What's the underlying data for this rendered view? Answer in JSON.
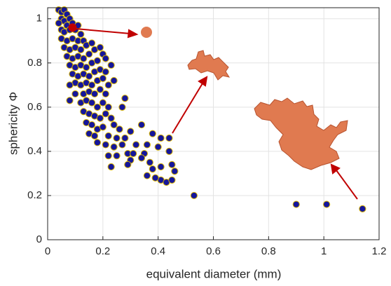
{
  "chart_data": {
    "type": "scatter",
    "x_label": "equivalent  diameter (mm)",
    "y_label": "sphericity Φ",
    "xlim": [
      0,
      1.2
    ],
    "ylim": [
      0,
      1.05
    ],
    "xticks": [
      0,
      0.2,
      0.4,
      0.6,
      0.8,
      1,
      1.2
    ],
    "yticks": [
      0,
      0.2,
      0.4,
      0.6,
      0.8,
      1
    ],
    "grid": true,
    "series": [
      {
        "color": "#15169a",
        "edgecolor": "#d8b400",
        "x": [
          0.04,
          0.05,
          0.06,
          0.07,
          0.05,
          0.06,
          0.08,
          0.04,
          0.07,
          0.09,
          0.05,
          0.06,
          0.08,
          0.1,
          0.11,
          0.12,
          0.05,
          0.07,
          0.09,
          0.11,
          0.13,
          0.06,
          0.08,
          0.1,
          0.12,
          0.14,
          0.16,
          0.07,
          0.09,
          0.11,
          0.13,
          0.15,
          0.17,
          0.19,
          0.2,
          0.08,
          0.1,
          0.12,
          0.14,
          0.16,
          0.18,
          0.21,
          0.23,
          0.09,
          0.11,
          0.13,
          0.15,
          0.17,
          0.19,
          0.21,
          0.1,
          0.12,
          0.14,
          0.16,
          0.18,
          0.2,
          0.22,
          0.24,
          0.08,
          0.1,
          0.13,
          0.15,
          0.17,
          0.19,
          0.21,
          0.28,
          0.08,
          0.12,
          0.14,
          0.16,
          0.18,
          0.2,
          0.22,
          0.27,
          0.13,
          0.15,
          0.17,
          0.19,
          0.21,
          0.23,
          0.14,
          0.16,
          0.18,
          0.2,
          0.24,
          0.26,
          0.3,
          0.34,
          0.15,
          0.17,
          0.22,
          0.25,
          0.28,
          0.38,
          0.18,
          0.21,
          0.24,
          0.27,
          0.32,
          0.36,
          0.41,
          0.44,
          0.22,
          0.25,
          0.29,
          0.31,
          0.35,
          0.4,
          0.44,
          0.3,
          0.34,
          0.37,
          0.23,
          0.29,
          0.38,
          0.41,
          0.45,
          0.46,
          0.41,
          0.43,
          0.45,
          0.36,
          0.39,
          0.53,
          0.9,
          1.01,
          1.14
        ],
        "values": [
          1.04,
          1.03,
          1.04,
          1.02,
          1.0,
          0.99,
          1.0,
          0.98,
          0.97,
          0.98,
          0.95,
          0.94,
          0.95,
          0.95,
          0.97,
          0.93,
          0.91,
          0.9,
          0.91,
          0.9,
          0.9,
          0.87,
          0.86,
          0.87,
          0.86,
          0.88,
          0.89,
          0.83,
          0.82,
          0.83,
          0.82,
          0.84,
          0.86,
          0.87,
          0.84,
          0.79,
          0.78,
          0.79,
          0.78,
          0.8,
          0.81,
          0.82,
          0.79,
          0.75,
          0.74,
          0.75,
          0.74,
          0.76,
          0.77,
          0.76,
          0.71,
          0.7,
          0.71,
          0.7,
          0.72,
          0.73,
          0.7,
          0.72,
          0.7,
          0.66,
          0.66,
          0.67,
          0.66,
          0.68,
          0.66,
          0.64,
          0.63,
          0.62,
          0.63,
          0.62,
          0.6,
          0.62,
          0.6,
          0.6,
          0.58,
          0.57,
          0.56,
          0.55,
          0.57,
          0.55,
          0.53,
          0.52,
          0.5,
          0.51,
          0.52,
          0.5,
          0.49,
          0.52,
          0.48,
          0.47,
          0.47,
          0.46,
          0.46,
          0.48,
          0.44,
          0.43,
          0.42,
          0.43,
          0.43,
          0.43,
          0.46,
          0.46,
          0.38,
          0.38,
          0.39,
          0.39,
          0.39,
          0.42,
          0.4,
          0.36,
          0.37,
          0.35,
          0.33,
          0.34,
          0.32,
          0.33,
          0.34,
          0.31,
          0.27,
          0.26,
          0.27,
          0.29,
          0.28,
          0.2,
          0.16,
          0.16,
          0.14
        ]
      },
      {
        "color": "#c00000",
        "x": [
          0.09
        ],
        "values": [
          0.96
        ]
      }
    ]
  }
}
